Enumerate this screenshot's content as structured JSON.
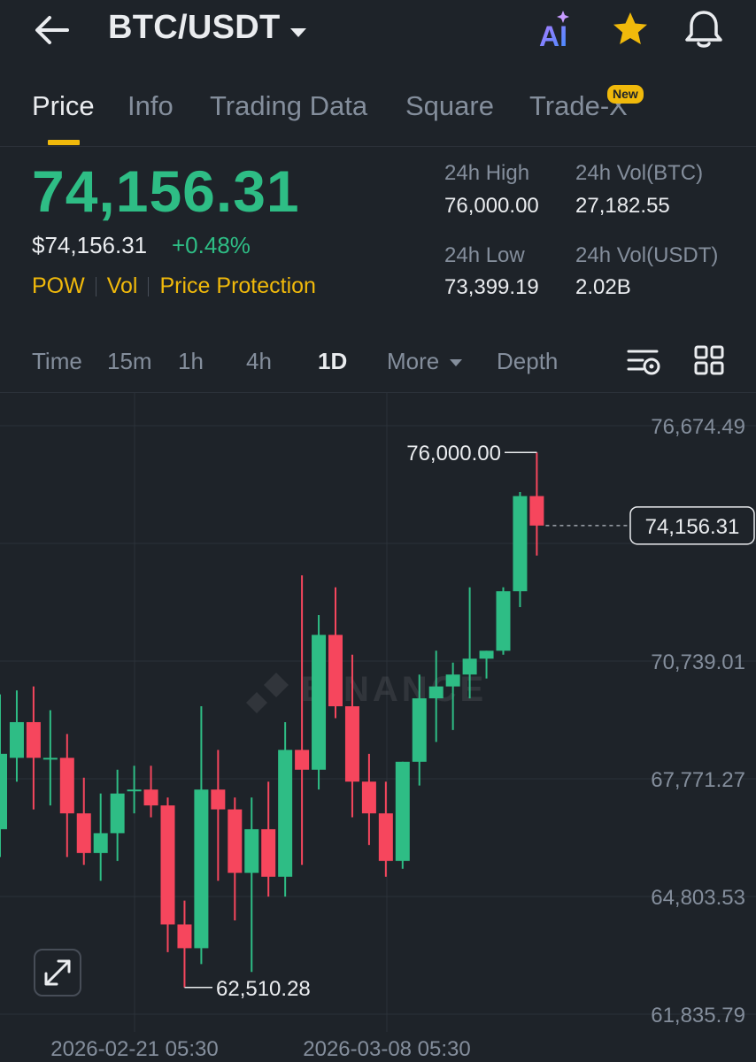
{
  "header": {
    "pair": "BTC/USDT",
    "icons": [
      "back-arrow-icon",
      "ai-icon",
      "star-icon",
      "bell-icon"
    ],
    "ai_label": "AI"
  },
  "tabs": [
    {
      "label": "Price",
      "active": true
    },
    {
      "label": "Info"
    },
    {
      "label": "Trading Data"
    },
    {
      "label": "Square"
    },
    {
      "label": "Trade-X",
      "badge": "New"
    }
  ],
  "ticker": {
    "last_price": "74,156.31",
    "usd_price": "$74,156.31",
    "change": "+0.48%",
    "tags": [
      "POW",
      "Vol",
      "Price Protection"
    ],
    "stats": {
      "high_label": "24h High",
      "high": "76,000.00",
      "vol_btc_label": "24h Vol(BTC)",
      "vol_btc": "27,182.55",
      "low_label": "24h Low",
      "low": "73,399.19",
      "vol_usdt_label": "24h Vol(USDT)",
      "vol_usdt": "2.02B"
    }
  },
  "intervals": {
    "items": [
      "Time",
      "15m",
      "1h",
      "4h",
      "1D",
      "More",
      "Depth"
    ],
    "active": "1D"
  },
  "colors": {
    "up": "#2ebd85",
    "down": "#f6465d",
    "accent": "#f0b90b",
    "background": "#1e2329"
  },
  "chart_data": {
    "type": "candlestick",
    "interval": "1D",
    "y_ticks": [
      "76,674.49",
      "70,739.01",
      "67,771.27",
      "64,803.53",
      "61,835.79"
    ],
    "y_tick_values": [
      76674.49,
      70739.01,
      67771.27,
      64803.53,
      61835.79
    ],
    "ylim": [
      61835.79,
      76674.49
    ],
    "x_labels": [
      "2026-02-21 05:30",
      "2026-03-08 05:30"
    ],
    "current_price": "74,156.31",
    "current_price_value": 74156.31,
    "max_marker": "76,000.00",
    "min_marker": "62,510.28",
    "watermark": "BINANCE",
    "candles": [
      {
        "o": 66500,
        "h": 69900,
        "l": 65800,
        "c": 68400
      },
      {
        "o": 68300,
        "h": 70000,
        "l": 67700,
        "c": 69200
      },
      {
        "o": 69200,
        "h": 70100,
        "l": 67000,
        "c": 68300
      },
      {
        "o": 68300,
        "h": 69500,
        "l": 67100,
        "c": 68300
      },
      {
        "o": 68300,
        "h": 68900,
        "l": 65800,
        "c": 66900
      },
      {
        "o": 66900,
        "h": 67800,
        "l": 65600,
        "c": 65900
      },
      {
        "o": 65900,
        "h": 67400,
        "l": 65200,
        "c": 66400
      },
      {
        "o": 66400,
        "h": 68000,
        "l": 65700,
        "c": 67400
      },
      {
        "o": 67500,
        "h": 68100,
        "l": 66900,
        "c": 67500
      },
      {
        "o": 67500,
        "h": 68100,
        "l": 66800,
        "c": 67100
      },
      {
        "o": 67100,
        "h": 67300,
        "l": 63400,
        "c": 64100
      },
      {
        "o": 64100,
        "h": 64700,
        "l": 62510,
        "c": 63500
      },
      {
        "o": 63500,
        "h": 69600,
        "l": 63100,
        "c": 67500
      },
      {
        "o": 67500,
        "h": 68500,
        "l": 65200,
        "c": 67000
      },
      {
        "o": 67000,
        "h": 67300,
        "l": 64200,
        "c": 65400
      },
      {
        "o": 65400,
        "h": 67300,
        "l": 62900,
        "c": 66500
      },
      {
        "o": 66500,
        "h": 67700,
        "l": 64800,
        "c": 65300
      },
      {
        "o": 65300,
        "h": 69200,
        "l": 64800,
        "c": 68500
      },
      {
        "o": 68500,
        "h": 72900,
        "l": 65600,
        "c": 68000
      },
      {
        "o": 68000,
        "h": 71900,
        "l": 67500,
        "c": 71400
      },
      {
        "o": 71400,
        "h": 72600,
        "l": 69300,
        "c": 69600
      },
      {
        "o": 69600,
        "h": 70900,
        "l": 66800,
        "c": 67700
      },
      {
        "o": 67700,
        "h": 68400,
        "l": 66100,
        "c": 66900
      },
      {
        "o": 66900,
        "h": 67700,
        "l": 65300,
        "c": 65700
      },
      {
        "o": 65700,
        "h": 68200,
        "l": 65500,
        "c": 68200
      },
      {
        "o": 68200,
        "h": 70400,
        "l": 67600,
        "c": 69800
      },
      {
        "o": 69800,
        "h": 71000,
        "l": 68700,
        "c": 70100
      },
      {
        "o": 70100,
        "h": 70700,
        "l": 69000,
        "c": 70400
      },
      {
        "o": 70400,
        "h": 72600,
        "l": 69800,
        "c": 70800
      },
      {
        "o": 70800,
        "h": 71000,
        "l": 70300,
        "c": 71000
      },
      {
        "o": 71000,
        "h": 72600,
        "l": 70900,
        "c": 72500
      },
      {
        "o": 72500,
        "h": 75000,
        "l": 72100,
        "c": 74900
      },
      {
        "o": 74900,
        "h": 76000,
        "l": 73400,
        "c": 74156.31
      }
    ]
  }
}
